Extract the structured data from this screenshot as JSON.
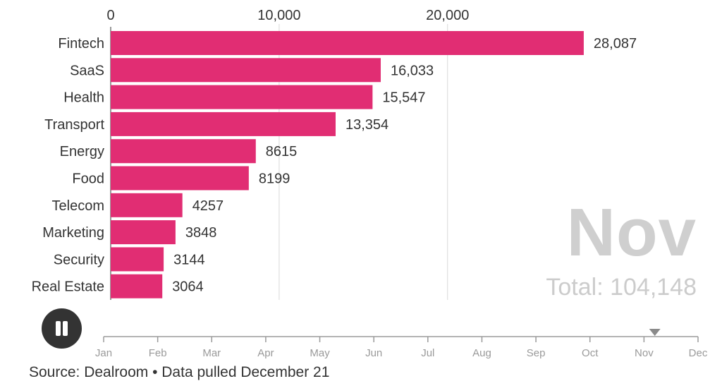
{
  "chart_data": {
    "type": "bar",
    "orientation": "horizontal",
    "categories": [
      "Fintech",
      "SaaS",
      "Health",
      "Transport",
      "Energy",
      "Food",
      "Telecom",
      "Marketing",
      "Security",
      "Real Estate"
    ],
    "values": [
      28087,
      16033,
      15547,
      13354,
      8615,
      8199,
      4257,
      3848,
      3144,
      3064
    ],
    "value_labels": [
      "28,087",
      "16,033",
      "15,547",
      "13,354",
      "8615",
      "8199",
      "4257",
      "3848",
      "3144",
      "3064"
    ],
    "xlim": [
      0,
      28500
    ],
    "x_ticks": [
      0,
      10000,
      20000
    ],
    "x_tick_labels": [
      "0",
      "10,000",
      "20,000"
    ],
    "grid": true,
    "bar_color": "#e12d73"
  },
  "overlay": {
    "month": "Nov",
    "total_label": "Total: 104,148"
  },
  "timeline": {
    "months": [
      "Jan",
      "Feb",
      "Mar",
      "Apr",
      "May",
      "Jun",
      "Jul",
      "Aug",
      "Sep",
      "Oct",
      "Nov",
      "Dec"
    ],
    "position_month_index": 10.2
  },
  "controls": {
    "play_state": "playing",
    "icon": "pause-icon"
  },
  "source_text": "Source: Dealroom • Data pulled December 21"
}
